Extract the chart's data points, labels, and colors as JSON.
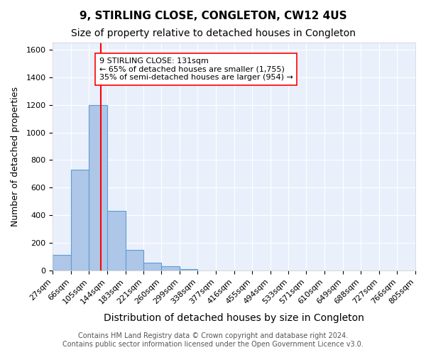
{
  "title": "9, STIRLING CLOSE, CONGLETON, CW12 4US",
  "subtitle": "Size of property relative to detached houses in Congleton",
  "xlabel": "Distribution of detached houses by size in Congleton",
  "ylabel": "Number of detached properties",
  "bin_edges": [
    27,
    66,
    105,
    144,
    183,
    221,
    260,
    299,
    338,
    377,
    416,
    455,
    494,
    533,
    571,
    610,
    649,
    688,
    727,
    766,
    805
  ],
  "bin_labels": [
    "27sqm",
    "66sqm",
    "105sqm",
    "144sqm",
    "183sqm",
    "221sqm",
    "260sqm",
    "299sqm",
    "338sqm",
    "377sqm",
    "416sqm",
    "455sqm",
    "494sqm",
    "533sqm",
    "571sqm",
    "610sqm",
    "649sqm",
    "688sqm",
    "727sqm",
    "766sqm",
    "805sqm"
  ],
  "counts": [
    115,
    730,
    1200,
    435,
    150,
    55,
    32,
    12,
    0,
    0,
    0,
    0,
    0,
    0,
    0,
    0,
    0,
    0,
    0,
    0
  ],
  "bar_color": "#aec6e8",
  "bar_edge_color": "#5a9fd4",
  "vline_x": 131,
  "vline_color": "red",
  "annotation_text": "9 STIRLING CLOSE: 131sqm\n← 65% of detached houses are smaller (1,755)\n35% of semi-detached houses are larger (954) →",
  "annotation_box_color": "white",
  "annotation_box_edge_color": "red",
  "ylim": [
    0,
    1650
  ],
  "yticks": [
    0,
    200,
    400,
    600,
    800,
    1000,
    1200,
    1400,
    1600
  ],
  "background_color": "#eaf0fb",
  "grid_color": "white",
  "footer_line1": "Contains HM Land Registry data © Crown copyright and database right 2024.",
  "footer_line2": "Contains public sector information licensed under the Open Government Licence v3.0.",
  "title_fontsize": 11,
  "subtitle_fontsize": 10,
  "xlabel_fontsize": 10,
  "ylabel_fontsize": 9,
  "tick_fontsize": 8,
  "annotation_fontsize": 8,
  "footer_fontsize": 7
}
